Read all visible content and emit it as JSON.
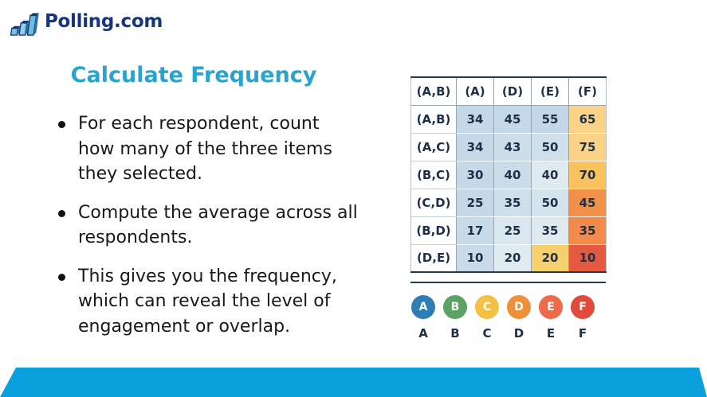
{
  "logo": {
    "text": "Polling.com"
  },
  "content": {
    "title": "Calculate Frequency",
    "bullets": [
      "For each respondent, count how many of the three items they selected.",
      "Compute the average across all respondents.",
      "This gives you the frequency, which can reveal the level of engagement or overlap."
    ]
  },
  "table": {
    "header": [
      "(A,B)",
      "(A)",
      "(D)",
      "(E)",
      "(F)"
    ],
    "rows": [
      {
        "label": "(A,B)",
        "values": [
          "34",
          "45",
          "55",
          "65"
        ],
        "colors": [
          "#c5d8e8",
          "#c5d8e8",
          "#c3d7e8",
          "#fad388"
        ]
      },
      {
        "label": "(A,C)",
        "values": [
          "34",
          "43",
          "50",
          "75"
        ],
        "colors": [
          "#c5d8e8",
          "#cddeea",
          "#cfdfea",
          "#fad388"
        ]
      },
      {
        "label": "(B,C)",
        "values": [
          "30",
          "40",
          "40",
          "70"
        ],
        "colors": [
          "#c5d8e8",
          "#cbdce9",
          "#dfeaee",
          "#f9c25d"
        ]
      },
      {
        "label": "(C,D)",
        "values": [
          "25",
          "35",
          "50",
          "45"
        ],
        "colors": [
          "#c5d8e8",
          "#cfdfea",
          "#d5e3ec",
          "#f19048"
        ]
      },
      {
        "label": "(B,D)",
        "values": [
          "17",
          "25",
          "35",
          "35"
        ],
        "colors": [
          "#c7dae8",
          "#dbe7ee",
          "#dfeaee",
          "#f18a4b"
        ]
      },
      {
        "label": "(D,E)",
        "values": [
          "10",
          "20",
          "20",
          "10"
        ],
        "colors": [
          "#c9dbe9",
          "#e0ebef",
          "#f7d06e",
          "#e45a40"
        ]
      }
    ]
  },
  "legend": {
    "items": [
      {
        "letter": "A",
        "color": "#2f7db5"
      },
      {
        "letter": "B",
        "color": "#5ba264"
      },
      {
        "letter": "C",
        "color": "#f5c043"
      },
      {
        "letter": "D",
        "color": "#ee9038"
      },
      {
        "letter": "E",
        "color": "#ed6a4a"
      },
      {
        "letter": "F",
        "color": "#e14b3b"
      }
    ]
  },
  "colors": {
    "title": "#28a4cf",
    "logo_text": "#17357c",
    "bottom_bar": "#0aa0de",
    "table_text": "#1e3048"
  }
}
